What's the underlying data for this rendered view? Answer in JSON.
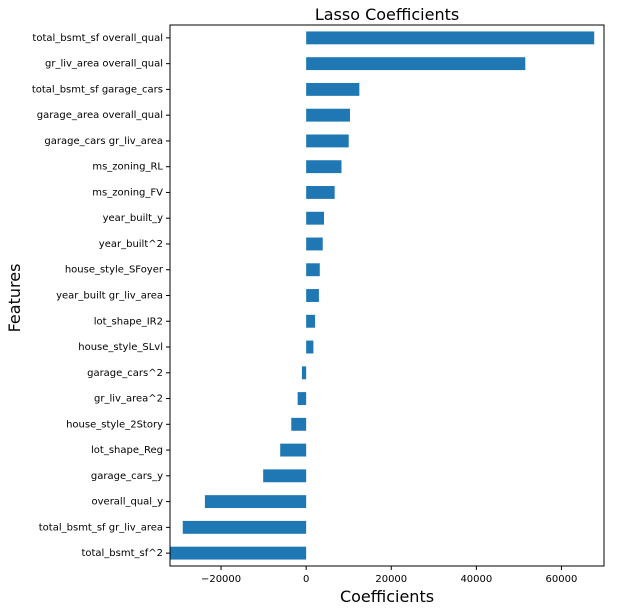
{
  "chart_data": {
    "type": "bar",
    "orientation": "horizontal",
    "title": "Lasso Coefficients",
    "xlabel": "Coefficients",
    "ylabel": "Features",
    "xlim": [
      -32000,
      70000
    ],
    "xticks": [
      -20000,
      0,
      20000,
      40000,
      60000
    ],
    "grid": false,
    "bar_color": "#1f77b4",
    "categories": [
      "total_bsmt_sf overall_qual",
      "gr_liv_area overall_qual",
      "total_bsmt_sf garage_cars",
      "garage_area overall_qual",
      "garage_cars gr_liv_area",
      "ms_zoning_RL",
      "ms_zoning_FV",
      "year_built_y",
      "year_built^2",
      "house_style_SFoyer",
      "year_built gr_liv_area",
      "lot_shape_IR2",
      "house_style_SLvl",
      "garage_cars^2",
      "gr_liv_area^2",
      "house_style_2Story",
      "lot_shape_Reg",
      "garage_cars_y",
      "overall_qual_y",
      "total_bsmt_sf gr_liv_area",
      "total_bsmt_sf^2"
    ],
    "values": [
      67700,
      51500,
      12500,
      10300,
      10000,
      8300,
      6700,
      4200,
      3900,
      3200,
      3000,
      2100,
      1700,
      -1000,
      -2000,
      -3500,
      -6100,
      -10100,
      -23800,
      -29000,
      -32000
    ]
  }
}
